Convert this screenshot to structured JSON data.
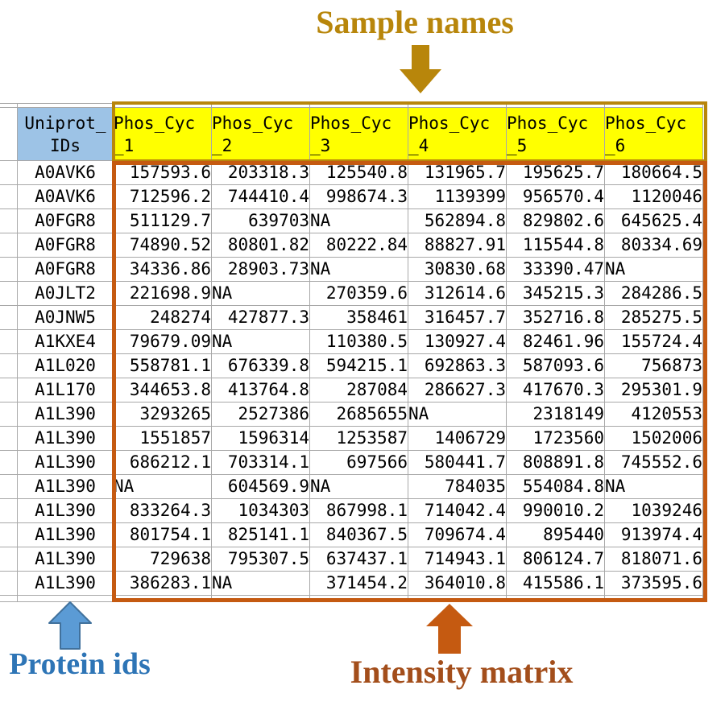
{
  "annotations": {
    "sample_names": "Sample names",
    "protein_ids": "Protein ids",
    "intensity_matrix": "Intensity matrix"
  },
  "table": {
    "id_column_header": {
      "line1": "Uniprot_",
      "line2": "IDs"
    },
    "sample_columns": [
      {
        "line1": "Phos_Cyc",
        "line2": "_1"
      },
      {
        "line1": "Phos_Cyc",
        "line2": "_2"
      },
      {
        "line1": "Phos_Cyc",
        "line2": "_3"
      },
      {
        "line1": "Phos_Cyc",
        "line2": "_4"
      },
      {
        "line1": "Phos_Cyc",
        "line2": "_5"
      },
      {
        "line1": "Phos_Cyc",
        "line2": "_6"
      }
    ],
    "rows": [
      {
        "id": "A0AVK6",
        "values": [
          "157593.6",
          "203318.3",
          "125540.8",
          "131965.7",
          "195625.7",
          "180664.5"
        ]
      },
      {
        "id": "A0AVK6",
        "values": [
          "712596.2",
          "744410.4",
          "998674.3",
          "1139399",
          "956570.4",
          "1120046"
        ]
      },
      {
        "id": "A0FGR8",
        "values": [
          "511129.7",
          "639703",
          "NA",
          "562894.8",
          "829802.6",
          "645625.4"
        ]
      },
      {
        "id": "A0FGR8",
        "values": [
          "74890.52",
          "80801.82",
          "80222.84",
          "88827.91",
          "115544.8",
          "80334.69"
        ]
      },
      {
        "id": "A0FGR8",
        "values": [
          "34336.86",
          "28903.73",
          "NA",
          "30830.68",
          "33390.47",
          "NA"
        ]
      },
      {
        "id": "A0JLT2",
        "values": [
          "221698.9",
          "NA",
          "270359.6",
          "312614.6",
          "345215.3",
          "284286.5"
        ]
      },
      {
        "id": "A0JNW5",
        "values": [
          "248274",
          "427877.3",
          "358461",
          "316457.7",
          "352716.8",
          "285275.5"
        ]
      },
      {
        "id": "A1KXE4",
        "values": [
          "79679.09",
          "NA",
          "110380.5",
          "130927.4",
          "82461.96",
          "155724.4"
        ]
      },
      {
        "id": "A1L020",
        "values": [
          "558781.1",
          "676339.8",
          "594215.1",
          "692863.3",
          "587093.6",
          "756873"
        ]
      },
      {
        "id": "A1L170",
        "values": [
          "344653.8",
          "413764.8",
          "287084",
          "286627.3",
          "417670.3",
          "295301.9"
        ]
      },
      {
        "id": "A1L390",
        "values": [
          "3293265",
          "2527386",
          "2685655",
          "NA",
          "2318149",
          "4120553"
        ]
      },
      {
        "id": "A1L390",
        "values": [
          "1551857",
          "1596314",
          "1253587",
          "1406729",
          "1723560",
          "1502006"
        ]
      },
      {
        "id": "A1L390",
        "values": [
          "686212.1",
          "703314.1",
          "697566",
          "580441.7",
          "808891.8",
          "745552.6"
        ]
      },
      {
        "id": "A1L390",
        "values": [
          "NA",
          "604569.9",
          "NA",
          "784035",
          "554084.8",
          "NA"
        ]
      },
      {
        "id": "A1L390",
        "values": [
          "833264.3",
          "1034303",
          "867998.1",
          "714042.4",
          "990010.2",
          "1039246"
        ]
      },
      {
        "id": "A1L390",
        "values": [
          "801754.1",
          "825141.1",
          "840367.5",
          "709674.4",
          "895440",
          "913974.4"
        ]
      },
      {
        "id": "A1L390",
        "values": [
          "729638",
          "795307.5",
          "637437.1",
          "714943.1",
          "806124.7",
          "818071.6"
        ]
      },
      {
        "id": "A1L390",
        "values": [
          "386283.1",
          "NA",
          "371454.2",
          "364010.8",
          "415586.1",
          "373595.6"
        ]
      }
    ],
    "na_text": "NA"
  },
  "colors": {
    "gold": "#B8860B",
    "yellow": "#FFFF00",
    "header_blue": "#9DC3E6",
    "grid": "#A8A8A8",
    "orange": "#C55A11",
    "intensity_text": "#A34E1B",
    "protein_text": "#2E75B6",
    "arrow_blue": "#5B9BD5",
    "arrow_blue_border": "#41719C"
  }
}
